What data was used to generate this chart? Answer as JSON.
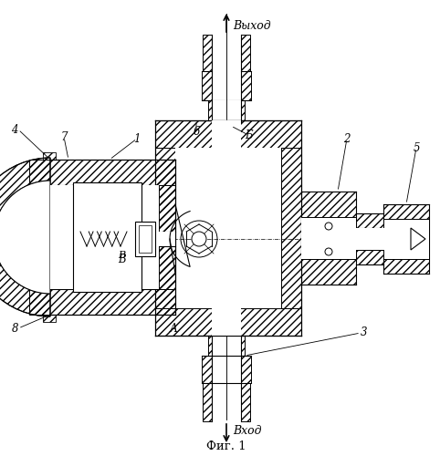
{
  "title": "Фиг. 1",
  "top_label": "Выход",
  "bottom_label": "Вход",
  "bg_color": "#ffffff",
  "line_color": "#000000",
  "fig_width": 4.82,
  "fig_height": 5.0,
  "dpi": 100
}
